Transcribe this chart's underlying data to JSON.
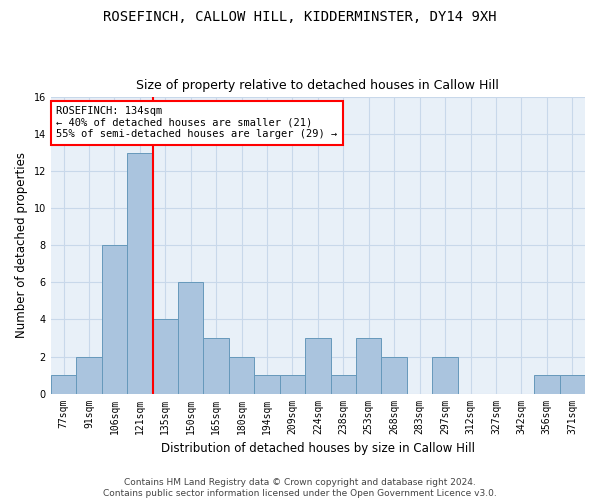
{
  "title": "ROSEFINCH, CALLOW HILL, KIDDERMINSTER, DY14 9XH",
  "subtitle": "Size of property relative to detached houses in Callow Hill",
  "xlabel": "Distribution of detached houses by size in Callow Hill",
  "ylabel": "Number of detached properties",
  "categories": [
    "77sqm",
    "91sqm",
    "106sqm",
    "121sqm",
    "135sqm",
    "150sqm",
    "165sqm",
    "180sqm",
    "194sqm",
    "209sqm",
    "224sqm",
    "238sqm",
    "253sqm",
    "268sqm",
    "283sqm",
    "297sqm",
    "312sqm",
    "327sqm",
    "342sqm",
    "356sqm",
    "371sqm"
  ],
  "values": [
    1,
    2,
    8,
    13,
    4,
    6,
    3,
    2,
    1,
    1,
    3,
    1,
    3,
    2,
    0,
    2,
    0,
    0,
    0,
    1,
    1
  ],
  "bar_color": "#aac4de",
  "bar_edge_color": "#6699bb",
  "grid_color": "#c8d8ea",
  "bg_color": "#e8f0f8",
  "annotation_text": "ROSEFINCH: 134sqm\n← 40% of detached houses are smaller (21)\n55% of semi-detached houses are larger (29) →",
  "red_line_bar_index": 3,
  "ylim": [
    0,
    16
  ],
  "yticks": [
    0,
    2,
    4,
    6,
    8,
    10,
    12,
    14,
    16
  ],
  "footer": "Contains HM Land Registry data © Crown copyright and database right 2024.\nContains public sector information licensed under the Open Government Licence v3.0.",
  "title_fontsize": 10,
  "subtitle_fontsize": 9,
  "xlabel_fontsize": 8.5,
  "ylabel_fontsize": 8.5,
  "tick_fontsize": 7,
  "footer_fontsize": 6.5,
  "annot_fontsize": 7.5
}
